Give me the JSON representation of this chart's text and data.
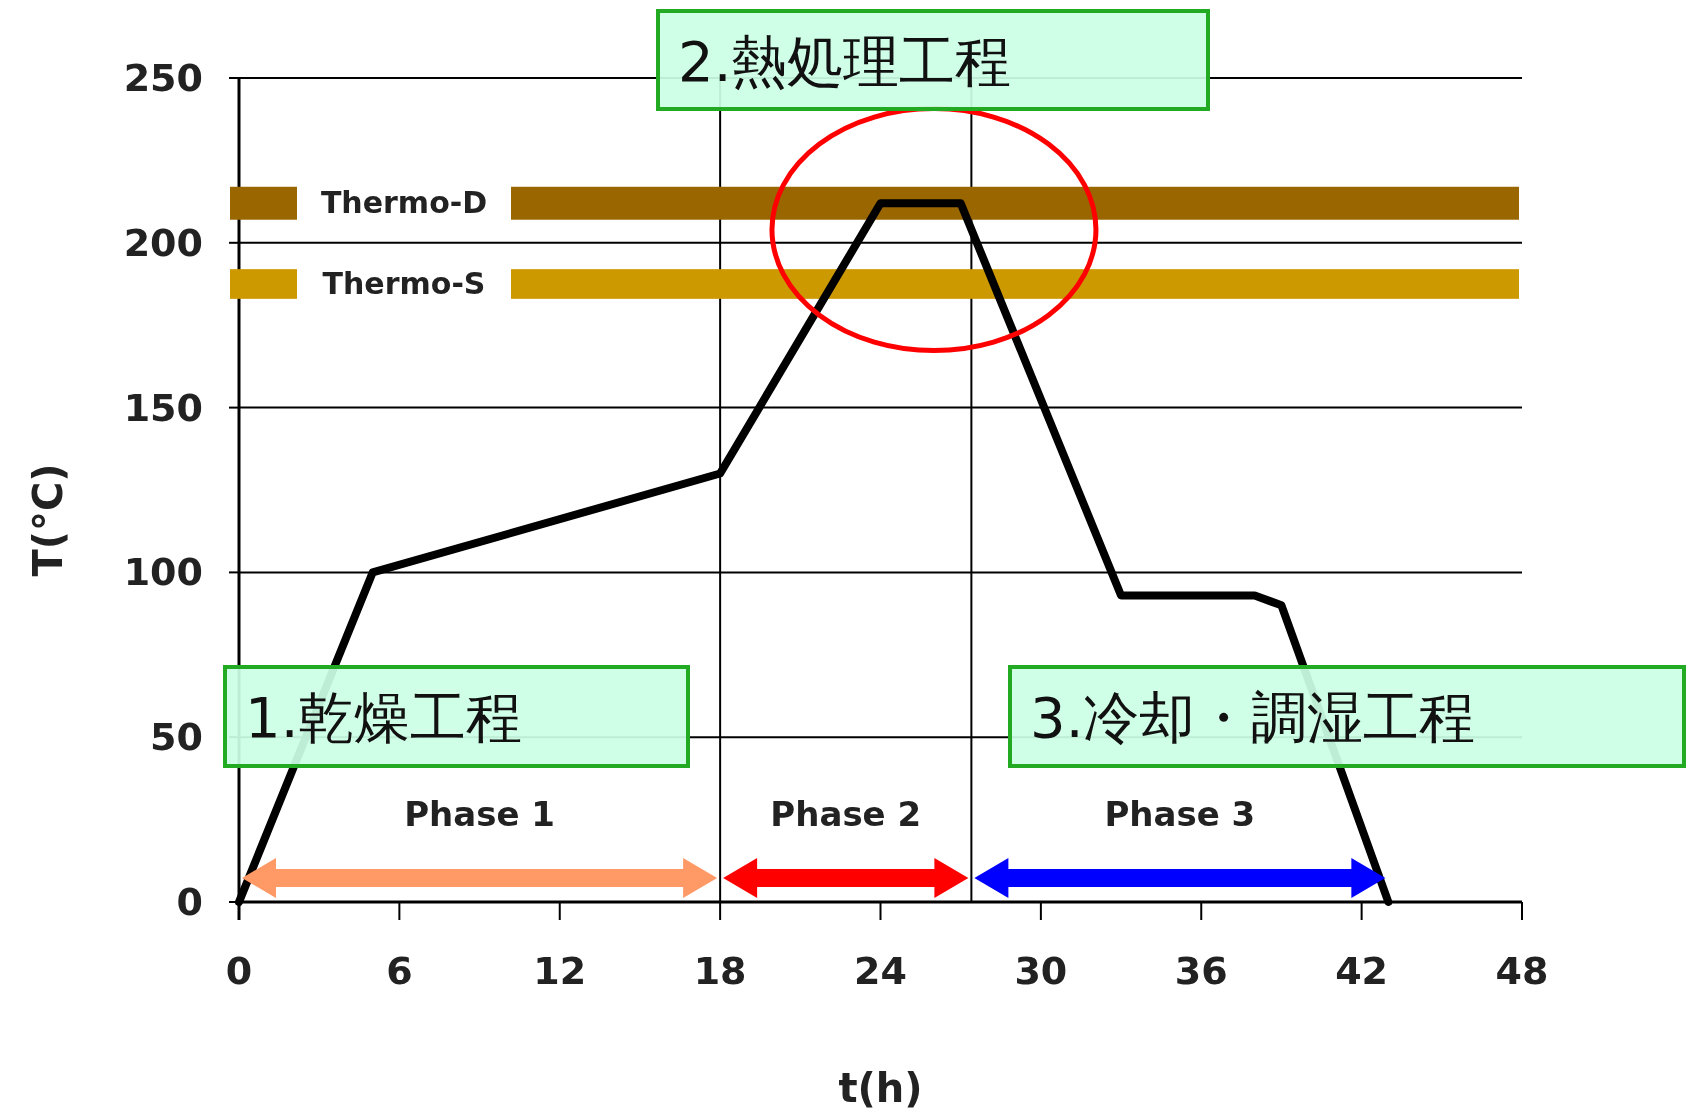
{
  "chart_data": {
    "type": "line",
    "xlabel": "t(h)",
    "ylabel": "T(°C)",
    "x": [
      0,
      5,
      18,
      24,
      27,
      33,
      38,
      39,
      43
    ],
    "series": [
      {
        "color": "#000000",
        "values": [
          0,
          100,
          130,
          212,
          212,
          93,
          93,
          90,
          0
        ]
      }
    ],
    "xlim": [
      0,
      48
    ],
    "xticks": [
      0,
      6,
      12,
      18,
      24,
      30,
      36,
      42,
      48
    ],
    "ylim": [
      0,
      250
    ],
    "yticks": [
      0,
      50,
      100,
      150,
      200,
      250
    ],
    "grid": "y",
    "marker": "none",
    "line_style": "solid",
    "ref_lines": [
      {
        "axis": "x",
        "value": 18,
        "label": null
      },
      {
        "axis": "x",
        "value": 27.4,
        "label": null
      }
    ],
    "bands": [
      {
        "axis": "y",
        "from": 207,
        "to": 217,
        "label": "Thermo-D",
        "color": "#996600"
      },
      {
        "axis": "y",
        "from": 183,
        "to": 192,
        "label": "Thermo-S",
        "color": "#cc9900"
      }
    ],
    "annotations": [
      "1.乾燥工程",
      "2.熱処理工程",
      "3.冷却・調湿工程",
      "Phase 1",
      "Phase 2",
      "Phase 3"
    ]
  }
}
